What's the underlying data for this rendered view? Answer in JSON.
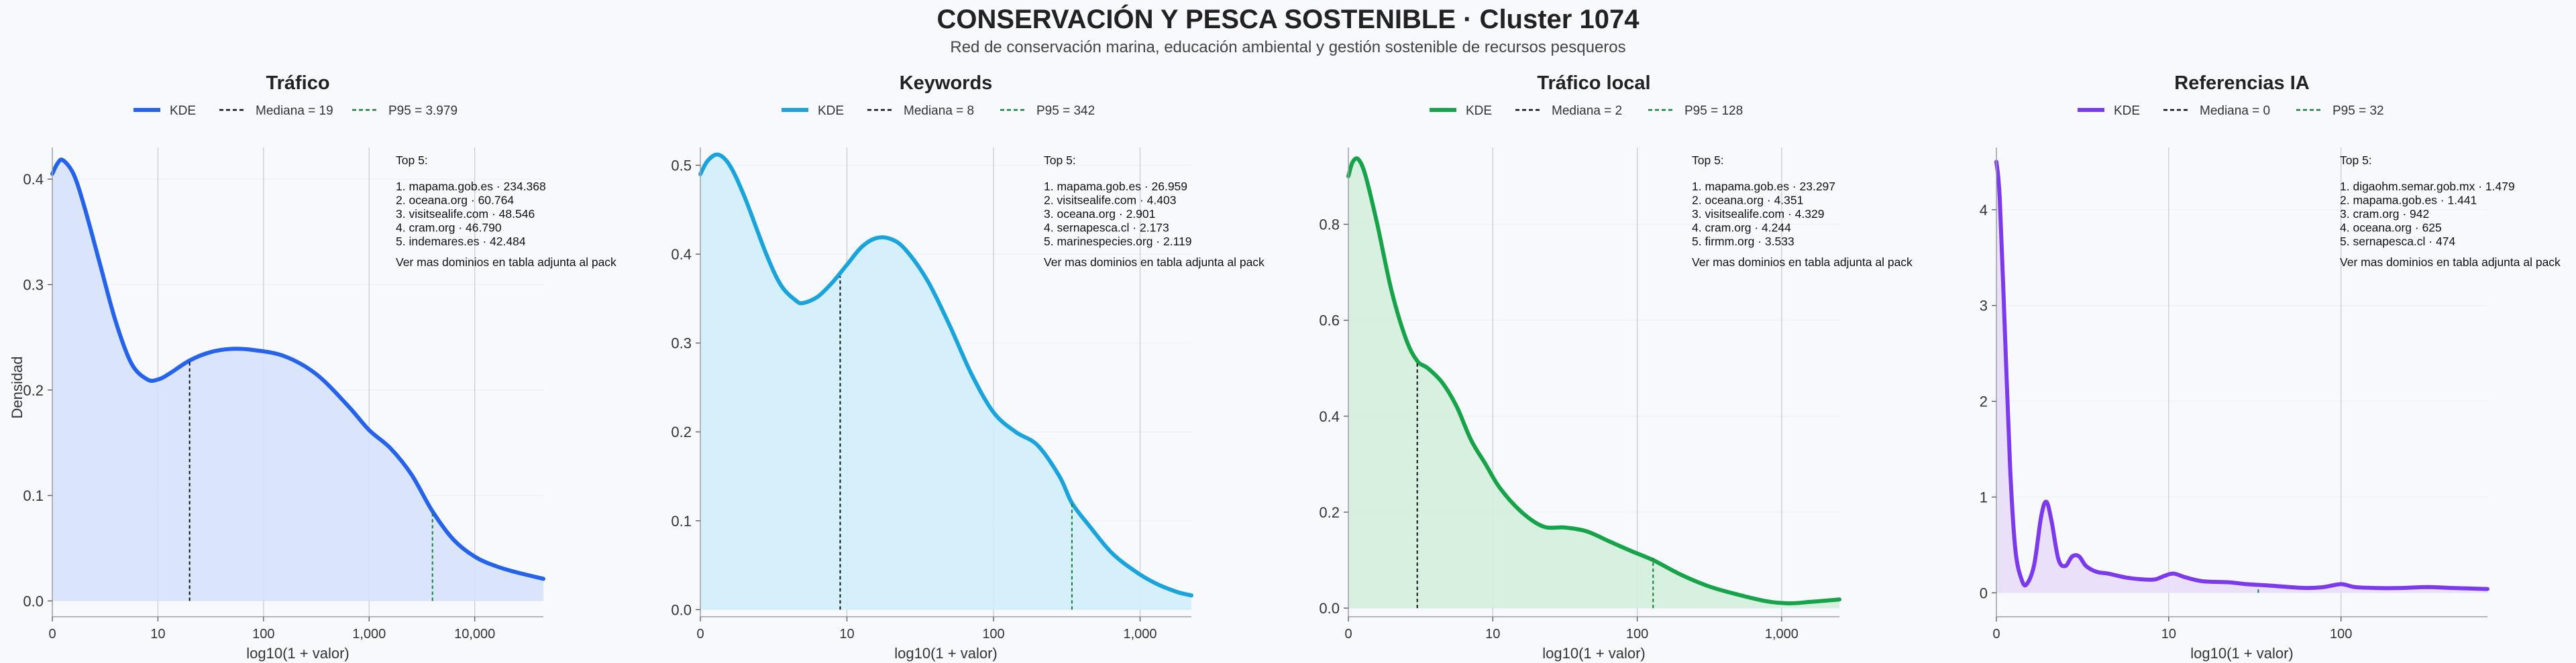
{
  "title": "CONSERVACIÓN Y PESCA SOSTENIBLE · Cluster 1074",
  "subtitle": "Red de conservación marina, educación ambiental y gestión sostenible de recursos pesqueros",
  "ylabel": "Densidad",
  "chart_data": [
    {
      "type": "line",
      "title": "Tráfico",
      "xlabel": "log10(1 + valor)",
      "color": "#2563eb",
      "fill": "#d6e1fb",
      "legend": {
        "kde": "KDE",
        "median": "Mediana = 19",
        "p95": "P95 = 3.979"
      },
      "x_scale": "log10(1+v)",
      "xlim": [
        0,
        4.65
      ],
      "ylim": [
        -0.015,
        0.43
      ],
      "xticks": [
        0,
        1,
        2,
        3,
        4
      ],
      "xtick_labels": [
        "0",
        "10",
        "100",
        "1,000",
        "10,000"
      ],
      "yticks": [
        0,
        0.1,
        0.2,
        0.3,
        0.4
      ],
      "ytick_labels": [
        "0.0",
        "0.1",
        "0.2",
        "0.3",
        "0.4"
      ],
      "median_x": 1.3,
      "median_y": 0.228,
      "p95_x": 3.6,
      "p95_y": 0.085,
      "kde": [
        [
          0,
          0.405
        ],
        [
          0.05,
          0.415
        ],
        [
          0.1,
          0.418
        ],
        [
          0.2,
          0.405
        ],
        [
          0.3,
          0.375
        ],
        [
          0.45,
          0.32
        ],
        [
          0.6,
          0.265
        ],
        [
          0.75,
          0.225
        ],
        [
          0.9,
          0.21
        ],
        [
          1.0,
          0.21
        ],
        [
          1.1,
          0.215
        ],
        [
          1.3,
          0.228
        ],
        [
          1.5,
          0.236
        ],
        [
          1.7,
          0.239
        ],
        [
          1.9,
          0.238
        ],
        [
          2.2,
          0.232
        ],
        [
          2.5,
          0.215
        ],
        [
          2.8,
          0.185
        ],
        [
          3.0,
          0.162
        ],
        [
          3.2,
          0.145
        ],
        [
          3.4,
          0.12
        ],
        [
          3.6,
          0.085
        ],
        [
          3.8,
          0.058
        ],
        [
          4.0,
          0.042
        ],
        [
          4.2,
          0.033
        ],
        [
          4.4,
          0.027
        ],
        [
          4.65,
          0.021
        ]
      ],
      "top": {
        "heading": "Top 5:",
        "items": [
          "1. mapama.gob.es · 234.368",
          "2. oceana.org · 60.764",
          "3. visitsealife.com · 48.546",
          "4. cram.org · 46.790",
          "5. indemares.es · 42.484"
        ],
        "footer": "Ver mas dominios en tabla adjunta al pack"
      }
    },
    {
      "type": "line",
      "title": "Keywords",
      "xlabel": "log10(1 + valor)",
      "color": "#1ba4dc",
      "fill": "#d1eefb",
      "legend": {
        "kde": "KDE",
        "median": "Mediana = 8",
        "p95": "P95 = 342"
      },
      "x_scale": "log10(1+v)",
      "xlim": [
        0,
        3.35
      ],
      "ylim": [
        -0.008,
        0.52
      ],
      "xticks": [
        0,
        1,
        2,
        3
      ],
      "xtick_labels": [
        "0",
        "10",
        "100",
        "1,000"
      ],
      "yticks": [
        0,
        0.1,
        0.2,
        0.3,
        0.4,
        0.5
      ],
      "ytick_labels": [
        "0.0",
        "0.1",
        "0.2",
        "0.3",
        "0.4",
        "0.5"
      ],
      "median_x": 0.954,
      "median_y": 0.375,
      "p95_x": 2.535,
      "p95_y": 0.12,
      "kde": [
        [
          0,
          0.49
        ],
        [
          0.05,
          0.505
        ],
        [
          0.12,
          0.512
        ],
        [
          0.2,
          0.5
        ],
        [
          0.3,
          0.465
        ],
        [
          0.45,
          0.4
        ],
        [
          0.55,
          0.365
        ],
        [
          0.65,
          0.348
        ],
        [
          0.7,
          0.345
        ],
        [
          0.8,
          0.352
        ],
        [
          0.9,
          0.368
        ],
        [
          1.0,
          0.388
        ],
        [
          1.1,
          0.408
        ],
        [
          1.2,
          0.418
        ],
        [
          1.3,
          0.417
        ],
        [
          1.4,
          0.405
        ],
        [
          1.55,
          0.37
        ],
        [
          1.7,
          0.32
        ],
        [
          1.85,
          0.265
        ],
        [
          2.0,
          0.222
        ],
        [
          2.15,
          0.2
        ],
        [
          2.3,
          0.185
        ],
        [
          2.45,
          0.15
        ],
        [
          2.535,
          0.12
        ],
        [
          2.65,
          0.095
        ],
        [
          2.8,
          0.065
        ],
        [
          2.95,
          0.045
        ],
        [
          3.1,
          0.03
        ],
        [
          3.25,
          0.02
        ],
        [
          3.35,
          0.016
        ]
      ],
      "top": {
        "heading": "Top 5:",
        "items": [
          "1. mapama.gob.es · 26.959",
          "2. visitsealife.com · 4.403",
          "3. oceana.org · 2.901",
          "4. sernapesca.cl · 2.173",
          "5. marinespecies.org · 2.119"
        ],
        "footer": "Ver mas dominios en tabla adjunta al pack"
      }
    },
    {
      "type": "line",
      "title": "Tráfico local",
      "xlabel": "log10(1 + valor)",
      "color": "#16a34a",
      "fill": "#d3eedc",
      "legend": {
        "kde": "KDE",
        "median": "Mediana = 2",
        "p95": "P95 = 128"
      },
      "x_scale": "log10(1+v)",
      "xlim": [
        0,
        3.4
      ],
      "ylim": [
        -0.018,
        0.96
      ],
      "xticks": [
        0,
        1,
        2,
        3
      ],
      "xtick_labels": [
        "0",
        "10",
        "100",
        "1,000"
      ],
      "yticks": [
        0,
        0.2,
        0.4,
        0.6,
        0.8
      ],
      "ytick_labels": [
        "0.0",
        "0.2",
        "0.4",
        "0.6",
        "0.8"
      ],
      "median_x": 0.477,
      "median_y": 0.51,
      "p95_x": 2.11,
      "p95_y": 0.105,
      "kde": [
        [
          0,
          0.9
        ],
        [
          0.03,
          0.93
        ],
        [
          0.07,
          0.935
        ],
        [
          0.12,
          0.9
        ],
        [
          0.2,
          0.8
        ],
        [
          0.3,
          0.66
        ],
        [
          0.4,
          0.56
        ],
        [
          0.477,
          0.515
        ],
        [
          0.55,
          0.5
        ],
        [
          0.65,
          0.47
        ],
        [
          0.75,
          0.42
        ],
        [
          0.85,
          0.35
        ],
        [
          0.95,
          0.3
        ],
        [
          1.05,
          0.25
        ],
        [
          1.2,
          0.2
        ],
        [
          1.35,
          0.17
        ],
        [
          1.5,
          0.168
        ],
        [
          1.65,
          0.16
        ],
        [
          1.8,
          0.14
        ],
        [
          1.95,
          0.12
        ],
        [
          2.11,
          0.1
        ],
        [
          2.3,
          0.07
        ],
        [
          2.5,
          0.045
        ],
        [
          2.7,
          0.028
        ],
        [
          2.9,
          0.014
        ],
        [
          3.05,
          0.01
        ],
        [
          3.2,
          0.013
        ],
        [
          3.4,
          0.018
        ]
      ],
      "top": {
        "heading": "Top 5:",
        "items": [
          "1. mapama.gob.es · 23.297",
          "2. oceana.org · 4.351",
          "3. visitsealife.com · 4.329",
          "4. cram.org · 4.244",
          "5. firmm.org · 3.533"
        ],
        "footer": "Ver mas dominios en tabla adjunta al pack"
      }
    },
    {
      "type": "line",
      "title": "Referencias IA",
      "xlabel": "log10(1 + valor)",
      "color": "#7c3aed",
      "fill": "#e9ddfa",
      "legend": {
        "kde": "KDE",
        "median": "Mediana = 0",
        "p95": "P95 = 32"
      },
      "x_scale": "log10(1+v)",
      "xlim": [
        0,
        2.85
      ],
      "ylim": [
        -0.25,
        4.65
      ],
      "xticks": [
        0,
        1,
        2
      ],
      "xtick_labels": [
        "0",
        "10",
        "100"
      ],
      "yticks": [
        0,
        1,
        2,
        3,
        4
      ],
      "ytick_labels": [
        "0",
        "1",
        "2",
        "3",
        "4"
      ],
      "median_x": 0,
      "median_y": 4.5,
      "p95_x": 1.52,
      "p95_y": 0.06,
      "kde": [
        [
          0,
          4.5
        ],
        [
          0.02,
          4.1
        ],
        [
          0.05,
          2.7
        ],
        [
          0.08,
          1.3
        ],
        [
          0.11,
          0.45
        ],
        [
          0.15,
          0.12
        ],
        [
          0.18,
          0.1
        ],
        [
          0.22,
          0.3
        ],
        [
          0.26,
          0.8
        ],
        [
          0.29,
          0.95
        ],
        [
          0.32,
          0.75
        ],
        [
          0.36,
          0.35
        ],
        [
          0.4,
          0.28
        ],
        [
          0.44,
          0.38
        ],
        [
          0.48,
          0.38
        ],
        [
          0.52,
          0.28
        ],
        [
          0.58,
          0.22
        ],
        [
          0.65,
          0.2
        ],
        [
          0.75,
          0.16
        ],
        [
          0.85,
          0.14
        ],
        [
          0.92,
          0.14
        ],
        [
          0.98,
          0.18
        ],
        [
          1.03,
          0.2
        ],
        [
          1.1,
          0.16
        ],
        [
          1.2,
          0.12
        ],
        [
          1.35,
          0.11
        ],
        [
          1.45,
          0.09
        ],
        [
          1.55,
          0.08
        ],
        [
          1.7,
          0.06
        ],
        [
          1.8,
          0.05
        ],
        [
          1.9,
          0.06
        ],
        [
          2.0,
          0.09
        ],
        [
          2.08,
          0.06
        ],
        [
          2.2,
          0.05
        ],
        [
          2.35,
          0.05
        ],
        [
          2.5,
          0.06
        ],
        [
          2.65,
          0.05
        ],
        [
          2.85,
          0.04
        ]
      ],
      "top": {
        "heading": "Top 5:",
        "items": [
          "1. digaohm.semar.gob.mx · 1.479",
          "2. mapama.gob.es · 1.441",
          "3. cram.org · 942",
          "4. oceana.org · 625",
          "5. sernapesca.cl · 474"
        ],
        "footer": "Ver mas dominios en tabla adjunta al pack"
      }
    }
  ]
}
